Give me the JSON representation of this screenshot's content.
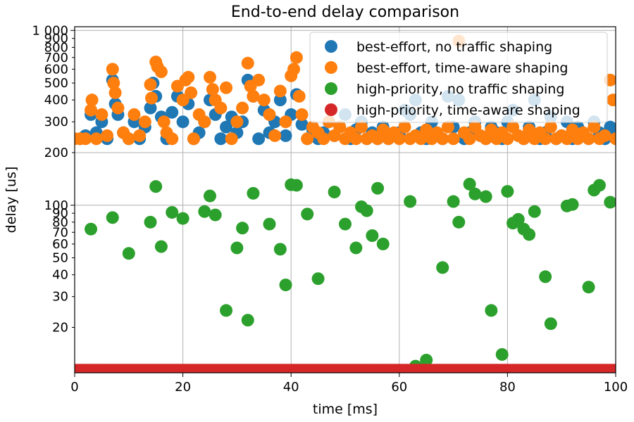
{
  "chart_data": {
    "type": "scatter",
    "title": "End-to-end delay comparison",
    "xlabel": "time [ms]",
    "ylabel": "delay [us]",
    "xlim": [
      0,
      100
    ],
    "ylim": [
      11,
      1050
    ],
    "yscale": "log",
    "grid": true,
    "legend_position": "top-right",
    "x_ticks": [
      0,
      20,
      40,
      60,
      80,
      100
    ],
    "x_tick_labels": [
      "0",
      "20",
      "40",
      "60",
      "80",
      "100"
    ],
    "y_ticks": [
      20,
      30,
      40,
      50,
      60,
      70,
      80,
      90,
      100,
      200,
      300,
      400,
      500,
      600,
      700,
      800,
      900,
      1000
    ],
    "y_tick_labels": [
      "20",
      "30",
      "40",
      "50",
      "60",
      "70",
      "80",
      "90",
      "100",
      "200",
      "300",
      "400",
      "500",
      "600",
      "700",
      "800",
      "900",
      "1 000"
    ],
    "y_gridlines": [
      100,
      200,
      1000
    ],
    "series": [
      {
        "name": "best-effort, no traffic shaping",
        "color": "#1f77b4",
        "points": [
          [
            1,
            240
          ],
          [
            2,
            250
          ],
          [
            3,
            330
          ],
          [
            4,
            260
          ],
          [
            5,
            300
          ],
          [
            6,
            240
          ],
          [
            7,
            520
          ],
          [
            7.5,
            380
          ],
          [
            8,
            330
          ],
          [
            9,
            260
          ],
          [
            10,
            240
          ],
          [
            11,
            300
          ],
          [
            12,
            240
          ],
          [
            13,
            280
          ],
          [
            14,
            360
          ],
          [
            14.5,
            500
          ],
          [
            15,
            420
          ],
          [
            16,
            320
          ],
          [
            17,
            240
          ],
          [
            18,
            340
          ],
          [
            19,
            420
          ],
          [
            20,
            300
          ],
          [
            21,
            380
          ],
          [
            22,
            240
          ],
          [
            23,
            260
          ],
          [
            24,
            300
          ],
          [
            25,
            400
          ],
          [
            26,
            330
          ],
          [
            27,
            240
          ],
          [
            28,
            280
          ],
          [
            29,
            320
          ],
          [
            30,
            260
          ],
          [
            31,
            300
          ],
          [
            32,
            520
          ],
          [
            33,
            420
          ],
          [
            34,
            240
          ],
          [
            35,
            350
          ],
          [
            36,
            260
          ],
          [
            37,
            300
          ],
          [
            38,
            400
          ],
          [
            39,
            250
          ],
          [
            40,
            330
          ],
          [
            41,
            430
          ],
          [
            42,
            290
          ],
          [
            43,
            240
          ],
          [
            44,
            270
          ],
          [
            45,
            240
          ],
          [
            46,
            260
          ],
          [
            47,
            300
          ],
          [
            48,
            250
          ],
          [
            49,
            280
          ],
          [
            50,
            330
          ],
          [
            51,
            240
          ],
          [
            52,
            270
          ],
          [
            53,
            300
          ],
          [
            54,
            240
          ],
          [
            55,
            260
          ],
          [
            56,
            240
          ],
          [
            57,
            280
          ],
          [
            58,
            240
          ],
          [
            59,
            250
          ],
          [
            60,
            260
          ],
          [
            61,
            350
          ],
          [
            62,
            330
          ],
          [
            63,
            400
          ],
          [
            64,
            260
          ],
          [
            65,
            240
          ],
          [
            66,
            300
          ],
          [
            67,
            250
          ],
          [
            68,
            240
          ],
          [
            69,
            420
          ],
          [
            70,
            280
          ],
          [
            71,
            400
          ],
          [
            72,
            240
          ],
          [
            73,
            260
          ],
          [
            74,
            300
          ],
          [
            75,
            250
          ],
          [
            76,
            240
          ],
          [
            77,
            280
          ],
          [
            78,
            260
          ],
          [
            79,
            240
          ],
          [
            80,
            300
          ],
          [
            81,
            350
          ],
          [
            82,
            250
          ],
          [
            83,
            240
          ],
          [
            84,
            280
          ],
          [
            85,
            400
          ],
          [
            86,
            240
          ],
          [
            87,
            260
          ],
          [
            88,
            320
          ],
          [
            89,
            240
          ],
          [
            90,
            250
          ],
          [
            91,
            300
          ],
          [
            92,
            240
          ],
          [
            93,
            280
          ],
          [
            94,
            250
          ],
          [
            95,
            240
          ],
          [
            96,
            300
          ],
          [
            97,
            260
          ],
          [
            98,
            240
          ],
          [
            99,
            280
          ],
          [
            100,
            250
          ]
        ]
      },
      {
        "name": "best-effort, time-aware shaping",
        "color": "#ff7f0e",
        "points": [
          [
            0,
            240
          ],
          [
            1,
            240
          ],
          [
            2,
            240
          ],
          [
            3,
            350
          ],
          [
            3.2,
            400
          ],
          [
            4,
            240
          ],
          [
            5,
            330
          ],
          [
            6,
            250
          ],
          [
            7,
            600
          ],
          [
            7.2,
            500
          ],
          [
            7.5,
            440
          ],
          [
            8,
            360
          ],
          [
            9,
            260
          ],
          [
            10,
            240
          ],
          [
            11,
            330
          ],
          [
            12,
            250
          ],
          [
            13,
            300
          ],
          [
            14,
            490
          ],
          [
            14.2,
            410
          ],
          [
            15,
            660
          ],
          [
            15.3,
            620
          ],
          [
            16,
            580
          ],
          [
            16.5,
            300
          ],
          [
            17,
            260
          ],
          [
            18,
            240
          ],
          [
            19,
            480
          ],
          [
            20,
            400
          ],
          [
            20.5,
            520
          ],
          [
            21,
            540
          ],
          [
            21.5,
            440
          ],
          [
            22,
            240
          ],
          [
            23,
            330
          ],
          [
            24,
            300
          ],
          [
            25,
            540
          ],
          [
            25.5,
            460
          ],
          [
            26,
            400
          ],
          [
            27,
            360
          ],
          [
            28,
            470
          ],
          [
            29,
            240
          ],
          [
            30,
            300
          ],
          [
            31,
            360
          ],
          [
            32,
            650
          ],
          [
            32.5,
            480
          ],
          [
            33,
            420
          ],
          [
            34,
            520
          ],
          [
            35,
            400
          ],
          [
            36,
            330
          ],
          [
            37,
            250
          ],
          [
            38,
            450
          ],
          [
            39,
            300
          ],
          [
            40,
            550
          ],
          [
            40.5,
            600
          ],
          [
            41,
            700
          ],
          [
            41.5,
            420
          ],
          [
            42,
            330
          ],
          [
            43,
            240
          ],
          [
            44,
            280
          ],
          [
            45,
            260
          ],
          [
            46,
            240
          ],
          [
            47,
            300
          ],
          [
            48,
            250
          ],
          [
            49,
            280
          ],
          [
            50,
            240
          ],
          [
            51,
            260
          ],
          [
            52,
            240
          ],
          [
            53,
            280
          ],
          [
            54,
            240
          ],
          [
            55,
            250
          ],
          [
            56,
            240
          ],
          [
            57,
            270
          ],
          [
            58,
            240
          ],
          [
            59,
            260
          ],
          [
            60,
            240
          ],
          [
            61,
            280
          ],
          [
            62,
            240
          ],
          [
            63,
            250
          ],
          [
            64,
            240
          ],
          [
            65,
            270
          ],
          [
            66,
            240
          ],
          [
            67,
            260
          ],
          [
            68,
            240
          ],
          [
            69,
            280
          ],
          [
            70,
            240
          ],
          [
            71,
            870
          ],
          [
            72,
            260
          ],
          [
            73,
            240
          ],
          [
            74,
            280
          ],
          [
            75,
            250
          ],
          [
            76,
            240
          ],
          [
            77,
            270
          ],
          [
            78,
            240
          ],
          [
            79,
            260
          ],
          [
            80,
            240
          ],
          [
            81,
            280
          ],
          [
            82,
            250
          ],
          [
            83,
            240
          ],
          [
            84,
            270
          ],
          [
            85,
            240
          ],
          [
            86,
            260
          ],
          [
            87,
            240
          ],
          [
            88,
            280
          ],
          [
            89,
            240
          ],
          [
            90,
            250
          ],
          [
            91,
            240
          ],
          [
            92,
            270
          ],
          [
            93,
            240
          ],
          [
            94,
            260
          ],
          [
            95,
            240
          ],
          [
            96,
            280
          ],
          [
            97,
            240
          ],
          [
            98,
            250
          ],
          [
            99,
            520
          ],
          [
            99.5,
            400
          ],
          [
            100,
            240
          ]
        ]
      },
      {
        "name": "high-priority, no traffic shaping",
        "color": "#2ca02c",
        "points": [
          [
            3,
            73
          ],
          [
            7,
            85
          ],
          [
            10,
            53
          ],
          [
            14,
            80
          ],
          [
            15,
            128
          ],
          [
            16,
            58
          ],
          [
            18,
            91
          ],
          [
            20,
            84
          ],
          [
            24,
            92
          ],
          [
            25,
            113
          ],
          [
            26,
            88
          ],
          [
            28,
            25
          ],
          [
            30,
            57
          ],
          [
            31,
            74
          ],
          [
            32,
            22
          ],
          [
            33,
            117
          ],
          [
            36,
            78
          ],
          [
            38,
            56
          ],
          [
            39,
            35
          ],
          [
            40,
            131
          ],
          [
            41,
            130
          ],
          [
            43,
            89
          ],
          [
            45,
            38
          ],
          [
            48,
            119
          ],
          [
            50,
            78
          ],
          [
            52,
            57
          ],
          [
            53,
            98
          ],
          [
            54,
            93
          ],
          [
            55,
            67
          ],
          [
            56,
            125
          ],
          [
            57,
            60
          ],
          [
            62,
            105
          ],
          [
            63,
            12
          ],
          [
            65,
            13
          ],
          [
            68,
            44
          ],
          [
            70,
            105
          ],
          [
            71,
            80
          ],
          [
            73,
            132
          ],
          [
            74,
            116
          ],
          [
            76,
            112
          ],
          [
            77,
            25
          ],
          [
            79,
            14
          ],
          [
            80,
            120
          ],
          [
            81,
            79
          ],
          [
            82,
            83
          ],
          [
            83,
            73
          ],
          [
            84,
            68
          ],
          [
            85,
            92
          ],
          [
            87,
            39
          ],
          [
            88,
            21
          ],
          [
            91,
            99
          ],
          [
            92,
            101
          ],
          [
            95,
            34
          ],
          [
            96,
            122
          ],
          [
            97,
            130
          ],
          [
            99,
            104
          ]
        ]
      },
      {
        "name": "high-priority, time-aware shaping",
        "color": "#d62728",
        "constant_value": 11.5,
        "x_range": [
          0,
          100
        ]
      }
    ]
  }
}
